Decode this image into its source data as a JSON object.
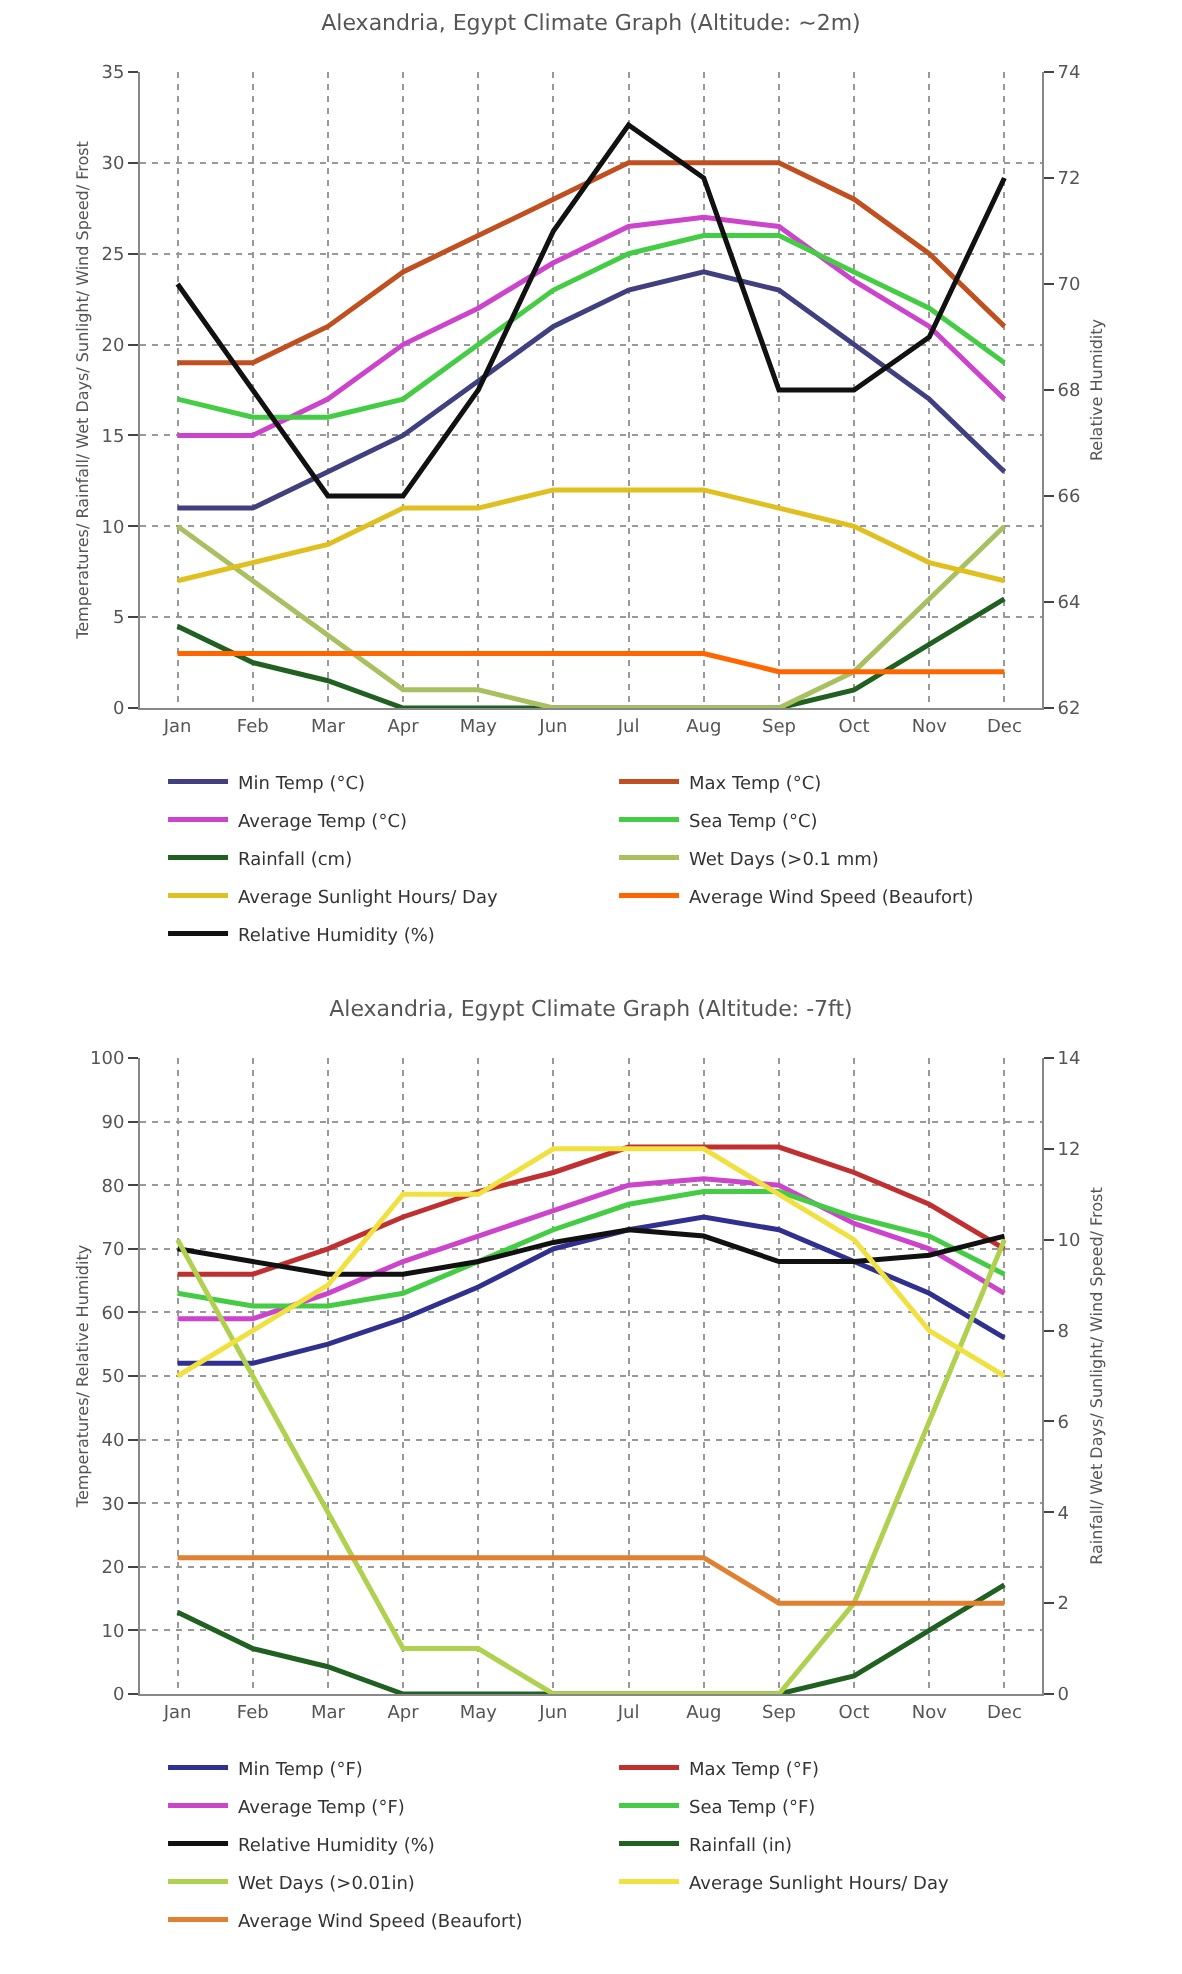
{
  "chart_data": [
    {
      "type": "line",
      "title": "Alexandria, Egypt Climate Graph (Altitude: ~2m)",
      "ylabel": "Temperatures/ Rainfall/ Wet Days/ Sunlight/ Wind Speed/ Frost",
      "y2label": "Relative Humidity",
      "categories": [
        "Jan",
        "Feb",
        "Mar",
        "Apr",
        "May",
        "Jun",
        "Jul",
        "Aug",
        "Sep",
        "Oct",
        "Nov",
        "Dec"
      ],
      "ylim": [
        0,
        35
      ],
      "yticks": [
        0,
        5,
        10,
        15,
        20,
        25,
        30,
        35
      ],
      "y2lim": [
        62,
        74
      ],
      "y2ticks": [
        62,
        64,
        66,
        68,
        70,
        72,
        74
      ],
      "grid": true,
      "legend": "bottom",
      "marker": "none",
      "line_style": "solid",
      "series": [
        {
          "name": "Min Temp (°C)",
          "color": "#404080",
          "values": [
            11,
            11,
            13,
            15,
            18,
            21,
            23,
            24,
            23,
            20,
            17,
            13
          ]
        },
        {
          "name": "Max Temp (°C)",
          "color": "#c05020",
          "values": [
            19,
            19,
            21,
            24,
            26,
            28,
            30,
            30,
            30,
            28,
            25,
            21
          ]
        },
        {
          "name": "Average Temp (°C)",
          "color": "#cc44cc",
          "values": [
            15,
            15,
            17,
            20,
            22,
            24.5,
            26.5,
            27,
            26.5,
            23.5,
            21,
            17
          ]
        },
        {
          "name": "Sea Temp (°C)",
          "color": "#44cc44",
          "values": [
            17,
            16,
            16,
            17,
            20,
            23,
            25,
            26,
            26,
            24,
            22,
            19
          ]
        },
        {
          "name": "Rainfall (cm)",
          "color": "#206020",
          "values": [
            4.5,
            2.5,
            1.5,
            0,
            0,
            0,
            0,
            0,
            0,
            1,
            3.5,
            6
          ]
        },
        {
          "name": "Wet Days (>0.1 mm)",
          "color": "#a8c060",
          "values": [
            10,
            7,
            4,
            1,
            1,
            0,
            0,
            0,
            0,
            2,
            6,
            10
          ]
        },
        {
          "name": "Average Sunlight Hours/ Day",
          "color": "#e0c020",
          "values": [
            7,
            8,
            9,
            11,
            11,
            12,
            12,
            12,
            11,
            10,
            8,
            7
          ]
        },
        {
          "name": "Average Wind Speed (Beaufort)",
          "color": "#ff6600",
          "values": [
            3,
            3,
            3,
            3,
            3,
            3,
            3,
            3,
            2,
            2,
            2,
            2
          ]
        },
        {
          "name": "Relative Humidity (%)",
          "color": "#111111",
          "axis": "y2",
          "values": [
            70,
            68,
            66,
            66,
            68,
            71,
            73,
            72,
            68,
            68,
            69,
            72
          ]
        }
      ]
    },
    {
      "type": "line",
      "title": "Alexandria, Egypt Climate Graph (Altitude: -7ft)",
      "ylabel": "Temperatures/ Relative Humidity",
      "y2label": "Rainfall/ Wet Days/ Sunlight/ Wind Speed/ Frost",
      "categories": [
        "Jan",
        "Feb",
        "Mar",
        "Apr",
        "May",
        "Jun",
        "Jul",
        "Aug",
        "Sep",
        "Oct",
        "Nov",
        "Dec"
      ],
      "ylim": [
        0,
        100
      ],
      "yticks": [
        0,
        10,
        20,
        30,
        40,
        50,
        60,
        70,
        80,
        90,
        100
      ],
      "y2lim": [
        0,
        14
      ],
      "y2ticks": [
        0,
        2,
        4,
        6,
        8,
        10,
        12,
        14
      ],
      "grid": true,
      "legend": "bottom",
      "marker": "none",
      "line_style": "solid",
      "series": [
        {
          "name": "Min Temp (°F)",
          "color": "#303090",
          "values": [
            52,
            52,
            55,
            59,
            64,
            70,
            73,
            75,
            73,
            68,
            63,
            56
          ]
        },
        {
          "name": "Max Temp (°F)",
          "color": "#c03030",
          "values": [
            66,
            66,
            70,
            75,
            79,
            82,
            86,
            86,
            86,
            82,
            77,
            70
          ]
        },
        {
          "name": "Average Temp (°F)",
          "color": "#cc44cc",
          "values": [
            59,
            59,
            63,
            68,
            72,
            76,
            80,
            81,
            80,
            74,
            70,
            63
          ]
        },
        {
          "name": "Sea Temp (°F)",
          "color": "#44cc44",
          "values": [
            63,
            61,
            61,
            63,
            68,
            73,
            77,
            79,
            79,
            75,
            72,
            66
          ]
        },
        {
          "name": "Relative Humidity (%)",
          "color": "#111111",
          "values": [
            70,
            68,
            66,
            66,
            68,
            71,
            73,
            72,
            68,
            68,
            69,
            72
          ]
        },
        {
          "name": "Rainfall (in)",
          "color": "#206020",
          "axis": "y2",
          "values": [
            1.8,
            1,
            0.6,
            0,
            0,
            0,
            0,
            0,
            0,
            0.4,
            1.4,
            2.4
          ]
        },
        {
          "name": "Wet Days (>0.01in)",
          "color": "#b0d050",
          "axis": "y2",
          "values": [
            10,
            7,
            4,
            1,
            1,
            0,
            0,
            0,
            0,
            2,
            6,
            10
          ]
        },
        {
          "name": "Average Sunlight Hours/ Day",
          "color": "#f0e040",
          "axis": "y2",
          "values": [
            7,
            8,
            9,
            11,
            11,
            12,
            12,
            12,
            11,
            10,
            8,
            7
          ]
        },
        {
          "name": "Average Wind Speed (Beaufort)",
          "color": "#e08030",
          "axis": "y2",
          "values": [
            3,
            3,
            3,
            3,
            3,
            3,
            3,
            3,
            2,
            2,
            2,
            2
          ]
        }
      ]
    }
  ]
}
